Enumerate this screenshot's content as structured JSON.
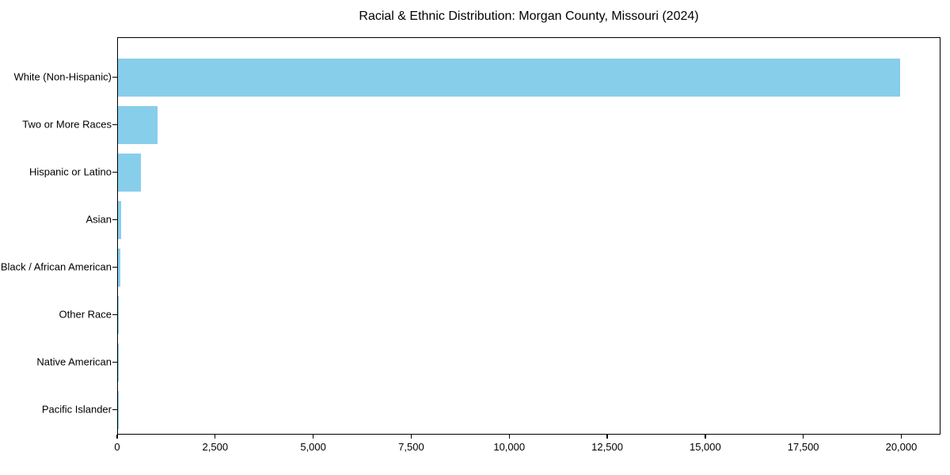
{
  "chart_data": {
    "type": "bar",
    "orientation": "horizontal",
    "title": "Racial & Ethnic Distribution: Morgan County, Missouri (2024)",
    "categories": [
      "White (Non-Hispanic)",
      "Two or More Races",
      "Hispanic or Latino",
      "Asian",
      "Black / African American",
      "Other Race",
      "Native American",
      "Pacific Islander"
    ],
    "values": [
      19950,
      1010,
      590,
      90,
      65,
      20,
      10,
      5
    ],
    "xlabel": "",
    "ylabel": "",
    "xlim": [
      0,
      21000
    ],
    "x_ticks": [
      0,
      2500,
      5000,
      7500,
      10000,
      12500,
      15000,
      17500,
      20000
    ],
    "x_tick_labels": [
      "0",
      "2,500",
      "5,000",
      "7,500",
      "10,000",
      "12,500",
      "15,000",
      "17,500",
      "20,000"
    ],
    "bar_color": "#87CEEB",
    "axis_color": "#000000",
    "grid": false,
    "legend": null
  }
}
